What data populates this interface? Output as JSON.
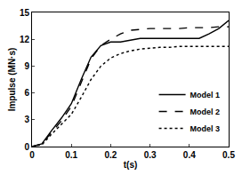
{
  "chart_data": {
    "type": "line",
    "x_label": "t(s)",
    "y_label": "Impulse (MN·s)",
    "x": [
      0,
      0.025,
      0.05,
      0.075,
      0.1,
      0.125,
      0.15,
      0.175,
      0.2,
      0.225,
      0.25,
      0.275,
      0.3,
      0.325,
      0.35,
      0.375,
      0.4,
      0.425,
      0.45,
      0.475,
      0.5
    ],
    "series": [
      {
        "name": "Model 1",
        "color": "#000000",
        "line_style": "solid",
        "values": [
          0,
          0.3,
          1.8,
          3.2,
          4.8,
          7.5,
          10.0,
          11.3,
          11.7,
          11.7,
          11.9,
          12.1,
          12.1,
          12.1,
          12.1,
          12.1,
          12.1,
          12.1,
          12.6,
          13.2,
          14.1
        ]
      },
      {
        "name": "Model 2",
        "color": "#000000",
        "line_style": "dash",
        "values": [
          0,
          0.3,
          1.6,
          2.9,
          4.5,
          7.2,
          9.8,
          11.3,
          12.0,
          12.6,
          13.0,
          13.1,
          13.2,
          13.2,
          13.2,
          13.2,
          13.3,
          13.3,
          13.3,
          13.4,
          13.4
        ]
      },
      {
        "name": "Model 3",
        "color": "#000000",
        "line_style": "dot",
        "values": [
          0,
          0.2,
          1.4,
          2.5,
          3.6,
          5.5,
          7.5,
          9.0,
          9.9,
          10.4,
          10.7,
          10.9,
          11.0,
          11.1,
          11.1,
          11.2,
          11.2,
          11.2,
          11.2,
          11.2,
          11.2
        ]
      }
    ],
    "xlim": [
      0,
      0.5
    ],
    "xticks": [
      0,
      0.1,
      0.2,
      0.3,
      0.4,
      0.5
    ],
    "ylim": [
      0,
      15
    ],
    "yticks": [
      0,
      3,
      6,
      9,
      12,
      15
    ],
    "grid": false,
    "legend": "lower right"
  }
}
